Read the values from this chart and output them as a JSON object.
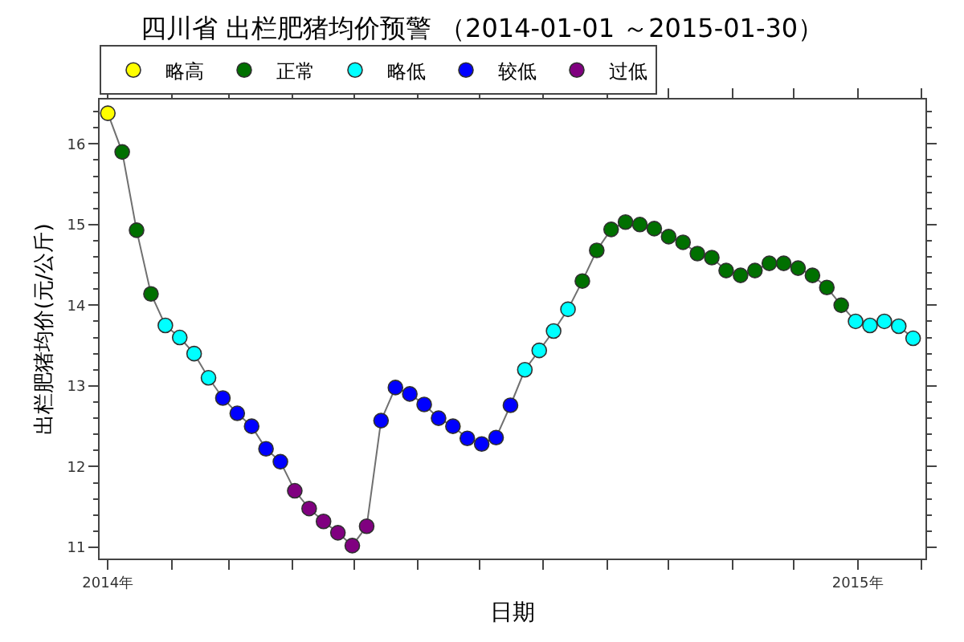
{
  "chart_data": {
    "type": "line",
    "title": "四川省 出栏肥猪均价预警 （2014-01-01 ～2015-01-30）",
    "xlabel": "日期",
    "ylabel": "出栏肥猪均价(元/公斤)",
    "x": [
      "2014-01-01",
      "2014-01-08",
      "2014-01-15",
      "2014-01-22",
      "2014-01-29",
      "2014-02-05",
      "2014-02-12",
      "2014-02-19",
      "2014-02-26",
      "2014-03-05",
      "2014-03-12",
      "2014-03-19",
      "2014-03-26",
      "2014-04-02",
      "2014-04-09",
      "2014-04-16",
      "2014-04-23",
      "2014-04-30",
      "2014-05-07",
      "2014-05-14",
      "2014-05-21",
      "2014-05-28",
      "2014-06-04",
      "2014-06-11",
      "2014-06-18",
      "2014-06-25",
      "2014-07-02",
      "2014-07-09",
      "2014-07-16",
      "2014-07-23",
      "2014-07-30",
      "2014-08-06",
      "2014-08-13",
      "2014-08-20",
      "2014-08-27",
      "2014-09-03",
      "2014-09-10",
      "2014-09-17",
      "2014-09-24",
      "2014-10-01",
      "2014-10-08",
      "2014-10-15",
      "2014-10-22",
      "2014-10-29",
      "2014-11-05",
      "2014-11-12",
      "2014-11-19",
      "2014-11-26",
      "2014-12-03",
      "2014-12-10",
      "2014-12-17",
      "2014-12-24",
      "2014-12-31",
      "2015-01-07",
      "2015-01-14",
      "2015-01-21",
      "2015-01-28"
    ],
    "series": [
      {
        "color": "#707070",
        "marker": "none",
        "values": [
          16.38,
          15.9,
          14.93,
          14.14,
          13.75,
          13.6,
          13.4,
          13.1,
          12.85,
          12.66,
          12.5,
          12.22,
          12.06,
          11.7,
          11.48,
          11.32,
          11.18,
          11.02,
          11.26,
          12.57,
          12.98,
          12.9,
          12.77,
          12.6,
          12.5,
          12.35,
          12.28,
          12.36,
          12.76,
          13.2,
          13.44,
          13.68,
          13.95,
          14.3,
          14.68,
          14.94,
          15.03,
          15.0,
          14.95,
          14.85,
          14.78,
          14.64,
          14.59,
          14.43,
          14.37,
          14.43,
          14.52,
          14.52,
          14.46,
          14.37,
          14.22,
          14.0,
          13.8,
          13.75,
          13.8,
          13.74,
          13.59
        ]
      },
      {
        "type": "scatter",
        "name": "略高",
        "color": "#ffff00",
        "values": [
          16.38,
          null,
          null,
          null,
          null,
          null,
          null,
          null,
          null,
          null,
          null,
          null,
          null,
          null,
          null,
          null,
          null,
          null,
          null,
          null,
          null,
          null,
          null,
          null,
          null,
          null,
          null,
          null,
          null,
          null,
          null,
          null,
          null,
          null,
          null,
          null,
          null,
          null,
          null,
          null,
          null,
          null,
          null,
          null,
          null,
          null,
          null,
          null,
          null,
          null,
          null,
          null,
          null,
          null,
          null,
          null,
          null
        ]
      },
      {
        "type": "scatter",
        "name": "正常",
        "color": "#007000",
        "values": [
          null,
          15.9,
          14.93,
          14.14,
          null,
          null,
          null,
          null,
          null,
          null,
          null,
          null,
          null,
          null,
          null,
          null,
          null,
          null,
          null,
          null,
          null,
          null,
          null,
          null,
          null,
          null,
          null,
          null,
          null,
          null,
          null,
          null,
          null,
          14.3,
          14.68,
          14.94,
          15.03,
          15.0,
          14.95,
          14.85,
          14.78,
          14.64,
          14.59,
          14.43,
          14.37,
          14.43,
          14.52,
          14.52,
          14.46,
          14.37,
          14.22,
          14.0,
          null,
          null,
          null,
          null,
          null
        ]
      },
      {
        "type": "scatter",
        "name": "略低",
        "color": "#00ffff",
        "values": [
          null,
          null,
          null,
          null,
          13.75,
          13.6,
          13.4,
          13.1,
          null,
          null,
          null,
          null,
          null,
          null,
          null,
          null,
          null,
          null,
          null,
          null,
          null,
          null,
          null,
          null,
          null,
          null,
          null,
          null,
          null,
          13.2,
          13.44,
          13.68,
          13.95,
          null,
          null,
          null,
          null,
          null,
          null,
          null,
          null,
          null,
          null,
          null,
          null,
          null,
          null,
          null,
          null,
          null,
          null,
          null,
          13.8,
          13.75,
          13.8,
          13.74,
          13.59
        ]
      },
      {
        "type": "scatter",
        "name": "较低",
        "color": "#0000ff",
        "values": [
          null,
          null,
          null,
          null,
          null,
          null,
          null,
          null,
          12.85,
          12.66,
          12.5,
          12.22,
          12.06,
          null,
          null,
          null,
          null,
          null,
          null,
          12.57,
          12.98,
          12.9,
          12.77,
          12.6,
          12.5,
          12.35,
          12.28,
          12.36,
          12.76,
          null,
          null,
          null,
          null,
          null,
          null,
          null,
          null,
          null,
          null,
          null,
          null,
          null,
          null,
          null,
          null,
          null,
          null,
          null,
          null,
          null,
          null,
          null,
          null,
          null,
          null,
          null,
          null
        ]
      },
      {
        "type": "scatter",
        "name": "过低",
        "color": "#800080",
        "values": [
          null,
          null,
          null,
          null,
          null,
          null,
          null,
          null,
          null,
          null,
          null,
          null,
          null,
          11.7,
          11.48,
          11.32,
          11.18,
          11.02,
          11.26,
          null,
          null,
          null,
          null,
          null,
          null,
          null,
          null,
          null,
          null,
          null,
          null,
          null,
          null,
          null,
          null,
          null,
          null,
          null,
          null,
          null,
          null,
          null,
          null,
          null,
          null,
          null,
          null,
          null,
          null,
          null,
          null,
          null,
          null,
          null,
          null,
          null,
          null
        ]
      }
    ],
    "marker": "circle",
    "xlim": [
      "2013-12-28",
      "2015-02-03"
    ],
    "xticks": [
      {
        "value": "2014-01-01",
        "label": "2014年"
      },
      {
        "value": "2014-02-01",
        "label": null
      },
      {
        "value": "2014-03-01",
        "label": null
      },
      {
        "value": "2014-04-01",
        "label": null
      },
      {
        "value": "2014-05-01",
        "label": null
      },
      {
        "value": "2014-06-01",
        "label": null
      },
      {
        "value": "2014-07-01",
        "label": null
      },
      {
        "value": "2014-08-01",
        "label": null
      },
      {
        "value": "2014-09-01",
        "label": null
      },
      {
        "value": "2014-10-01",
        "label": null
      },
      {
        "value": "2014-11-01",
        "label": null
      },
      {
        "value": "2014-12-01",
        "label": null
      },
      {
        "value": "2015-01-01",
        "label": "2015年"
      },
      {
        "value": "2015-02-01",
        "label": null
      }
    ],
    "ylim": [
      10.86,
      16.55
    ],
    "yticks": [
      11,
      12,
      13,
      14,
      15,
      16
    ],
    "legend": "top"
  }
}
